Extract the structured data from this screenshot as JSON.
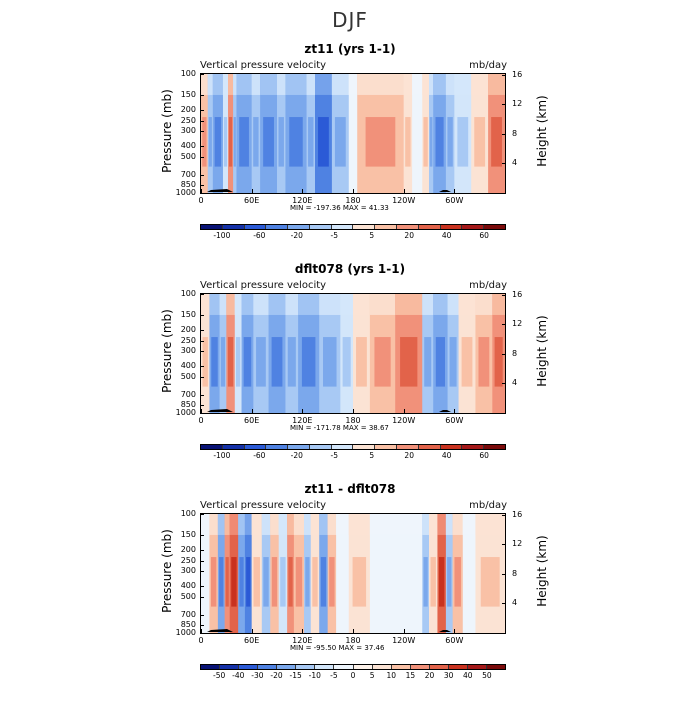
{
  "main_title": "DJF",
  "palette_pos": [
    "#fbe3d4",
    "#f9c1a6",
    "#f1917a",
    "#e2634a",
    "#c9321f",
    "#a51919",
    "#7a0a0a"
  ],
  "palette_neg": [
    "#d3e6fa",
    "#a8c9f4",
    "#7ba8ec",
    "#4f82e2",
    "#2b5ad6",
    "#1431a8",
    "#081275"
  ],
  "chart_data": [
    {
      "type": "heatmap",
      "title": "zt11 (yrs 1-1)",
      "left_label": "Vertical pressure velocity",
      "right_label": "mb/day",
      "ylabel": "Pressure (mb)",
      "ylabel_right": "Height (km)",
      "y_ticks": [
        "100",
        "150",
        "200",
        "250",
        "300",
        "400",
        "500",
        "700",
        "850",
        "1000"
      ],
      "y_ticks_right": [
        "16",
        "12",
        "8",
        "4"
      ],
      "x_ticks": [
        "0",
        "60E",
        "120E",
        "180",
        "120W",
        "60W"
      ],
      "minmax": "MIN = -197.36   MAX =  41.33",
      "colorbar_labels": [
        "-100",
        "-60",
        "-20",
        "-5",
        "5",
        "20",
        "40",
        "60"
      ],
      "colorbar_colors": [
        "#081275",
        "#1431a8",
        "#2b5ad6",
        "#4f82e2",
        "#7ba8ec",
        "#a8c9f4",
        "#d3e6fa",
        "#fbe3d4",
        "#f9c1a6",
        "#f1917a",
        "#e2634a",
        "#c9321f",
        "#a51919",
        "#7a0a0a"
      ],
      "x_range": [
        0,
        360
      ],
      "columns": [
        [
          0,
          8,
          2
        ],
        [
          8,
          14,
          -2
        ],
        [
          14,
          26,
          -3
        ],
        [
          26,
          32,
          -1
        ],
        [
          32,
          38,
          3
        ],
        [
          38,
          42,
          -2
        ],
        [
          42,
          60,
          -3
        ],
        [
          60,
          70,
          -2
        ],
        [
          70,
          90,
          -3
        ],
        [
          90,
          100,
          -2
        ],
        [
          100,
          125,
          -3
        ],
        [
          125,
          135,
          -2
        ],
        [
          135,
          155,
          -4
        ],
        [
          155,
          175,
          -2
        ],
        [
          175,
          185,
          0
        ],
        [
          185,
          240,
          2
        ],
        [
          240,
          250,
          1
        ],
        [
          250,
          262,
          0
        ],
        [
          262,
          270,
          1
        ],
        [
          270,
          275,
          -2
        ],
        [
          275,
          290,
          -3
        ],
        [
          290,
          300,
          -2
        ],
        [
          300,
          320,
          -1
        ],
        [
          320,
          340,
          1
        ],
        [
          340,
          360,
          3
        ]
      ]
    },
    {
      "type": "heatmap",
      "title": "dflt078 (yrs 1-1)",
      "left_label": "Vertical pressure velocity",
      "right_label": "mb/day",
      "ylabel": "Pressure (mb)",
      "ylabel_right": "Height (km)",
      "y_ticks": [
        "100",
        "150",
        "200",
        "250",
        "300",
        "400",
        "500",
        "700",
        "850",
        "1000"
      ],
      "y_ticks_right": [
        "16",
        "12",
        "8",
        "4"
      ],
      "x_ticks": [
        "0",
        "60E",
        "120E",
        "180",
        "120W",
        "60W"
      ],
      "minmax": "MIN = -171.78   MAX =  38.67",
      "colorbar_labels": [
        "-100",
        "-60",
        "-20",
        "-5",
        "5",
        "20",
        "40",
        "60"
      ],
      "colorbar_colors": [
        "#081275",
        "#1431a8",
        "#2b5ad6",
        "#4f82e2",
        "#7ba8ec",
        "#a8c9f4",
        "#d3e6fa",
        "#fbe3d4",
        "#f9c1a6",
        "#f1917a",
        "#e2634a",
        "#c9321f",
        "#a51919",
        "#7a0a0a"
      ],
      "x_range": [
        0,
        360
      ],
      "columns": [
        [
          0,
          10,
          1
        ],
        [
          10,
          22,
          -3
        ],
        [
          22,
          30,
          -2
        ],
        [
          30,
          40,
          3
        ],
        [
          40,
          48,
          -1
        ],
        [
          48,
          62,
          -3
        ],
        [
          62,
          80,
          -2
        ],
        [
          80,
          100,
          -3
        ],
        [
          100,
          115,
          -2
        ],
        [
          115,
          140,
          -3
        ],
        [
          140,
          165,
          -2
        ],
        [
          165,
          180,
          -1
        ],
        [
          180,
          200,
          1
        ],
        [
          200,
          230,
          2
        ],
        [
          230,
          262,
          3
        ],
        [
          262,
          275,
          -2
        ],
        [
          275,
          292,
          -3
        ],
        [
          292,
          305,
          -2
        ],
        [
          305,
          325,
          1
        ],
        [
          325,
          345,
          2
        ],
        [
          345,
          360,
          3
        ]
      ]
    },
    {
      "type": "heatmap",
      "title": "zt11 - dflt078",
      "left_label": "Vertical pressure velocity",
      "right_label": "mb/day",
      "ylabel": "Pressure (mb)",
      "ylabel_right": "Height (km)",
      "y_ticks": [
        "100",
        "150",
        "200",
        "250",
        "300",
        "400",
        "500",
        "700",
        "850",
        "1000"
      ],
      "y_ticks_right": [
        "16",
        "12",
        "8",
        "4"
      ],
      "x_ticks": [
        "0",
        "60E",
        "120E",
        "180",
        "120W",
        "60W"
      ],
      "minmax": "MIN = -95.50   MAX =  37.46",
      "colorbar_labels": [
        "-50",
        "-40",
        "-30",
        "-20",
        "-15",
        "-10",
        "-5",
        "0",
        "5",
        "10",
        "15",
        "20",
        "30",
        "40",
        "50"
      ],
      "colorbar_colors": [
        "#081275",
        "#1431a8",
        "#2b5ad6",
        "#4f82e2",
        "#7ba8ec",
        "#a8c9f4",
        "#d3e6fa",
        "#eef5fc",
        "#fdf2ea",
        "#fbe3d4",
        "#f9c1a6",
        "#f1917a",
        "#e2634a",
        "#c9321f",
        "#a51919",
        "#7a0a0a"
      ],
      "x_range": [
        0,
        360
      ],
      "columns": [
        [
          0,
          10,
          0
        ],
        [
          10,
          20,
          2
        ],
        [
          20,
          28,
          -3
        ],
        [
          28,
          34,
          3
        ],
        [
          34,
          44,
          4
        ],
        [
          44,
          52,
          -3
        ],
        [
          52,
          60,
          -4
        ],
        [
          60,
          72,
          1
        ],
        [
          72,
          82,
          -2
        ],
        [
          82,
          92,
          2
        ],
        [
          92,
          102,
          -1
        ],
        [
          102,
          110,
          3
        ],
        [
          110,
          122,
          2
        ],
        [
          122,
          130,
          -2
        ],
        [
          130,
          140,
          1
        ],
        [
          140,
          150,
          -3
        ],
        [
          150,
          160,
          2
        ],
        [
          160,
          175,
          0
        ],
        [
          175,
          200,
          1
        ],
        [
          200,
          240,
          0
        ],
        [
          240,
          262,
          0
        ],
        [
          262,
          270,
          -2
        ],
        [
          270,
          280,
          1
        ],
        [
          280,
          290,
          4
        ],
        [
          290,
          298,
          -2
        ],
        [
          298,
          310,
          2
        ],
        [
          310,
          325,
          0
        ],
        [
          325,
          360,
          1
        ]
      ]
    }
  ]
}
